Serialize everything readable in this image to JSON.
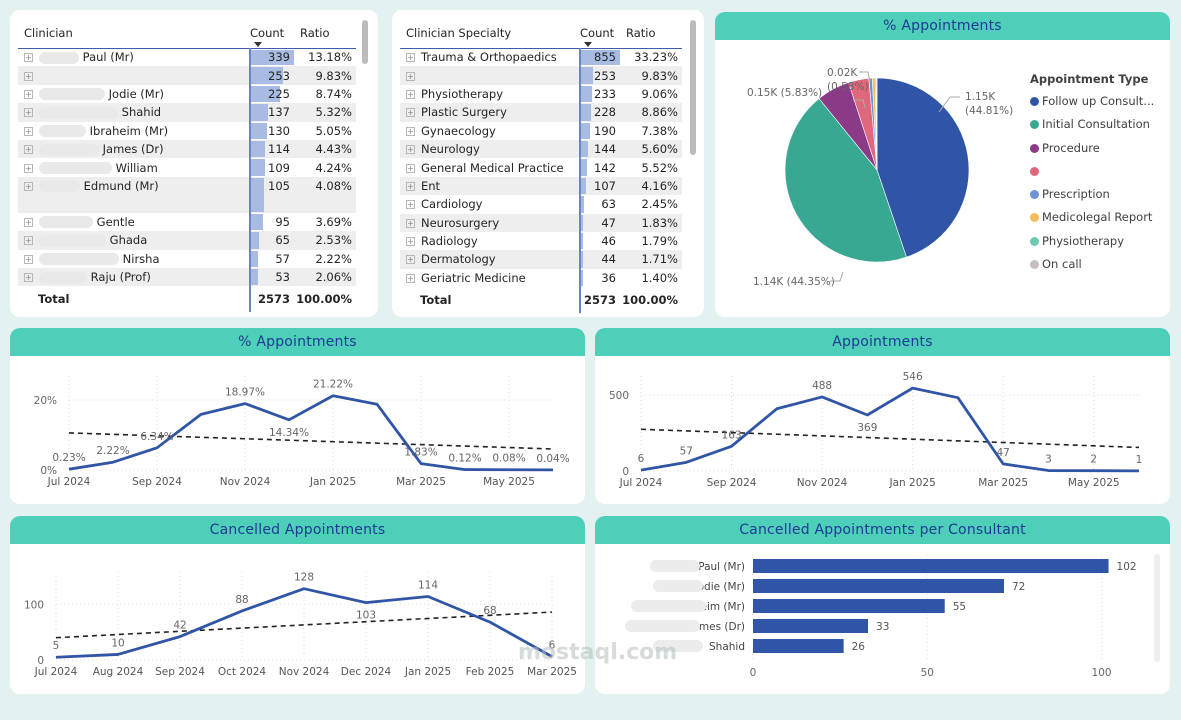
{
  "clinician_table": {
    "headers": {
      "name": "Clinician",
      "count": "Count",
      "ratio": "Ratio"
    },
    "rows": [
      {
        "name": "Paul (Mr)",
        "count": 339,
        "ratio": "13.18%"
      },
      {
        "name": "",
        "count": 253,
        "ratio": "9.83%"
      },
      {
        "name": "Jodie (Mr)",
        "count": 225,
        "ratio": "8.74%"
      },
      {
        "name": "Shahid",
        "count": 137,
        "ratio": "5.32%"
      },
      {
        "name": "Ibraheim (Mr)",
        "count": 130,
        "ratio": "5.05%"
      },
      {
        "name": "James (Dr)",
        "count": 114,
        "ratio": "4.43%"
      },
      {
        "name": "William",
        "count": 109,
        "ratio": "4.24%"
      },
      {
        "name": "Edmund (Mr)",
        "count": 105,
        "ratio": "4.08%"
      },
      {
        "name": "Gentle",
        "count": 95,
        "ratio": "3.69%"
      },
      {
        "name": "Ghada",
        "count": 65,
        "ratio": "2.53%"
      },
      {
        "name": "Nirsha",
        "count": 57,
        "ratio": "2.22%"
      },
      {
        "name": "Raju (Prof)",
        "count": 53,
        "ratio": "2.06%"
      }
    ],
    "total": {
      "label": "Total",
      "count": "2573",
      "ratio": "100.00%"
    }
  },
  "specialty_table": {
    "headers": {
      "name": "Clinician Specialty",
      "count": "Count",
      "ratio": "Ratio"
    },
    "rows": [
      {
        "name": "Trauma & Orthopaedics",
        "count": 855,
        "ratio": "33.23%"
      },
      {
        "name": "",
        "count": 253,
        "ratio": "9.83%"
      },
      {
        "name": "Physiotherapy",
        "count": 233,
        "ratio": "9.06%"
      },
      {
        "name": "Plastic Surgery",
        "count": 228,
        "ratio": "8.86%"
      },
      {
        "name": "Gynaecology",
        "count": 190,
        "ratio": "7.38%"
      },
      {
        "name": "Neurology",
        "count": 144,
        "ratio": "5.60%"
      },
      {
        "name": "General Medical Practice",
        "count": 142,
        "ratio": "5.52%"
      },
      {
        "name": "Ent",
        "count": 107,
        "ratio": "4.16%"
      },
      {
        "name": "Cardiology",
        "count": 63,
        "ratio": "2.45%"
      },
      {
        "name": "Neurosurgery",
        "count": 47,
        "ratio": "1.83%"
      },
      {
        "name": "Radiology",
        "count": 46,
        "ratio": "1.79%"
      },
      {
        "name": "Dermatology",
        "count": 44,
        "ratio": "1.71%"
      },
      {
        "name": "Geriatric Medicine",
        "count": 36,
        "ratio": "1.40%"
      }
    ],
    "total": {
      "label": "Total",
      "count": "2573",
      "ratio": "100.00%"
    }
  },
  "chart_data": [
    {
      "id": "pie",
      "type": "pie",
      "title": "% Appointments",
      "legend_title": "Appointment Type",
      "legend": "right",
      "slices": [
        {
          "name": "Follow up Consult...",
          "value": 44.81,
          "label": "1.15K (44.81%)",
          "color": "#3155a6"
        },
        {
          "name": "Initial Consultation",
          "value": 44.35,
          "label": "1.14K (44.35%)",
          "color": "#39a893"
        },
        {
          "name": "Procedure",
          "value": 5.83,
          "label": "0.15K (5.83%)",
          "color": "#8a3a86"
        },
        {
          "name": "",
          "value": 3.6,
          "label": "",
          "color": "#e0687c"
        },
        {
          "name": "Prescription",
          "value": 0.58,
          "label": "0.02K (0.58%)",
          "color": "#6b93d6"
        },
        {
          "name": "Medicolegal Report",
          "value": 0.5,
          "label": "",
          "color": "#f2bb5c"
        },
        {
          "name": "Physiotherapy",
          "value": 0.2,
          "label": "",
          "color": "#6fc8b4"
        },
        {
          "name": "On call",
          "value": 0.13,
          "label": "",
          "color": "#c8bcc4"
        }
      ]
    },
    {
      "id": "pct",
      "type": "line",
      "title": "% Appointments",
      "x": [
        "Jul 2024",
        "Aug 2024",
        "Sep 2024",
        "Oct 2024",
        "Nov 2024",
        "Dec 2024",
        "Jan 2025",
        "Feb 2025",
        "Mar 2025",
        "Apr 2025",
        "May 2025",
        "Jun 2025"
      ],
      "xticks": [
        "Jul 2024",
        "Sep 2024",
        "Nov 2024",
        "Jan 2025",
        "Mar 2025",
        "May 2025"
      ],
      "values": [
        0.23,
        2.22,
        6.34,
        15.9,
        18.97,
        14.34,
        21.22,
        18.8,
        1.83,
        0.12,
        0.08,
        0.04
      ],
      "labels": [
        "0.23%",
        "2.22%",
        "6.34%",
        "",
        "18.97%",
        "14.34%",
        "21.22%",
        "",
        "1.83%",
        "0.12%",
        "0.08%",
        "0.04%"
      ],
      "trend": [
        10.6,
        6.0
      ],
      "yticks": [
        "0%",
        "20%"
      ],
      "ylim": [
        0,
        24
      ],
      "ytick_values": [
        0,
        20
      ]
    },
    {
      "id": "appt",
      "type": "line",
      "title": "Appointments",
      "x": [
        "Jul 2024",
        "Aug 2024",
        "Sep 2024",
        "Oct 2024",
        "Nov 2024",
        "Dec 2024",
        "Jan 2025",
        "Feb 2025",
        "Mar 2025",
        "Apr 2025",
        "May 2025",
        "Jun 2025"
      ],
      "xticks": [
        "Jul 2024",
        "Sep 2024",
        "Nov 2024",
        "Jan 2025",
        "Mar 2025",
        "May 2025"
      ],
      "values": [
        6,
        57,
        163,
        410,
        488,
        369,
        546,
        483,
        47,
        3,
        2,
        1
      ],
      "labels": [
        "6",
        "57",
        "163",
        "",
        "488",
        "369",
        "546",
        "",
        "47",
        "3",
        "2",
        "1"
      ],
      "trend": [
        275,
        155
      ],
      "yticks": [
        "0",
        "500"
      ],
      "ylim": [
        0,
        560
      ],
      "ytick_values": [
        0,
        500
      ]
    },
    {
      "id": "cancel",
      "type": "line",
      "title": "Cancelled Appointments",
      "x": [
        "Jul 2024",
        "Aug 2024",
        "Sep 2024",
        "Oct 2024",
        "Nov 2024",
        "Dec 2024",
        "Jan 2025",
        "Feb 2025",
        "Mar 2025"
      ],
      "xticks": [
        "Jul 2024",
        "Aug 2024",
        "Sep 2024",
        "Oct 2024",
        "Nov 2024",
        "Dec 2024",
        "Jan 2025",
        "Feb 2025",
        "Mar 2025"
      ],
      "values": [
        5,
        10,
        42,
        88,
        128,
        103,
        114,
        68,
        6
      ],
      "labels": [
        "5",
        "10",
        "42",
        "88",
        "128",
        "103",
        "114",
        "68",
        "6"
      ],
      "trend": [
        40,
        86
      ],
      "yticks": [
        "0",
        "100"
      ],
      "ylim": [
        0,
        140
      ],
      "ytick_values": [
        0,
        100
      ]
    },
    {
      "id": "perconsult",
      "type": "bar",
      "orientation": "horizontal",
      "title": "Cancelled Appointments per Consultant",
      "categories": [
        "Paul (Mr)",
        "Jodie (Mr)",
        "Ibraheim (Mr)",
        "James (Dr)",
        "Shahid"
      ],
      "values": [
        102,
        72,
        55,
        33,
        26
      ],
      "xticks": [
        "0",
        "50",
        "100"
      ],
      "xtick_values": [
        0,
        50,
        100
      ],
      "xlim": [
        0,
        105
      ]
    }
  ],
  "watermark": "mostaql.com",
  "colors": {
    "header": "#4ecfba",
    "title": "#1f3a93",
    "line": "#3155a6",
    "bar": "#3155a6"
  }
}
